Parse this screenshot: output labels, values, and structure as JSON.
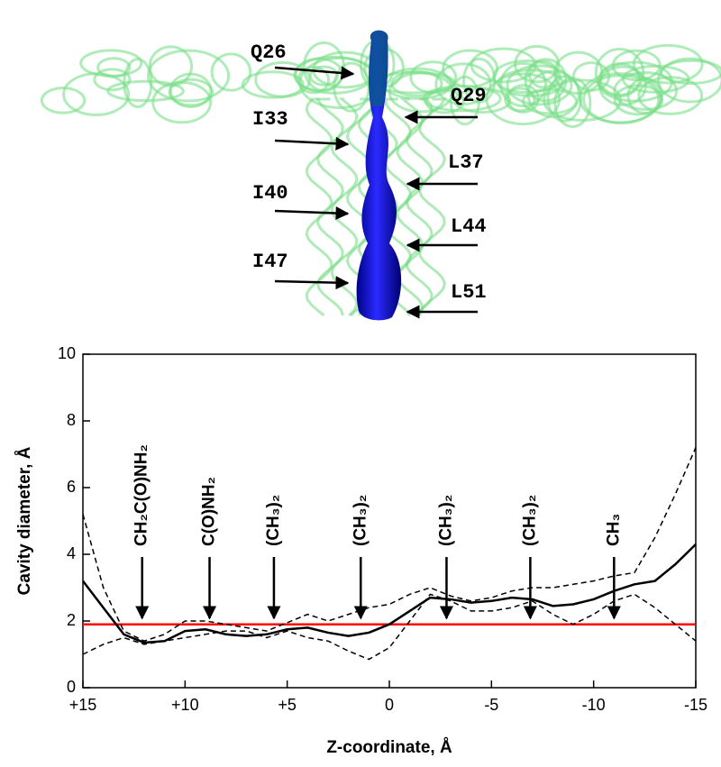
{
  "structure": {
    "labels": [
      "Q26",
      "Q29",
      "I33",
      "L37",
      "I40",
      "L44",
      "I47",
      "L51"
    ]
  },
  "chart_data": {
    "type": "line",
    "xlabel": "Z-coordinate, Å",
    "ylabel": "Cavity diameter, Å",
    "x": [
      15,
      14,
      13,
      12,
      11,
      10,
      9,
      8,
      7,
      6,
      5,
      4,
      3,
      2,
      1,
      0,
      -1,
      -2,
      -3,
      -4,
      -5,
      -6,
      -7,
      -8,
      -9,
      -10,
      -11,
      -12,
      -13,
      -14,
      -15
    ],
    "series": [
      {
        "color": "#000000",
        "dash": "solid",
        "values": [
          3.2,
          2.4,
          1.6,
          1.35,
          1.4,
          1.7,
          1.75,
          1.6,
          1.55,
          1.6,
          1.75,
          1.8,
          1.65,
          1.55,
          1.65,
          1.9,
          2.3,
          2.7,
          2.65,
          2.55,
          2.6,
          2.7,
          2.65,
          2.45,
          2.5,
          2.65,
          2.9,
          3.1,
          3.2,
          3.7,
          4.3
        ]
      },
      {
        "color": "#000000",
        "dash": "dashed",
        "values": [
          5.2,
          3.0,
          1.7,
          1.4,
          1.6,
          2.0,
          2.0,
          1.9,
          1.8,
          1.7,
          1.95,
          2.2,
          2.0,
          2.2,
          2.4,
          2.5,
          2.8,
          3.0,
          2.75,
          2.6,
          2.7,
          2.9,
          3.0,
          3.0,
          3.1,
          3.2,
          3.35,
          3.45,
          4.5,
          5.8,
          7.2
        ]
      },
      {
        "color": "#000000",
        "dash": "dashed",
        "values": [
          1.0,
          1.3,
          1.5,
          1.3,
          1.4,
          1.5,
          1.6,
          1.7,
          1.7,
          1.5,
          1.7,
          1.5,
          1.4,
          1.1,
          0.85,
          1.2,
          2.0,
          2.8,
          2.6,
          2.3,
          2.3,
          2.4,
          2.6,
          2.2,
          1.9,
          2.2,
          2.6,
          2.8,
          2.4,
          1.9,
          1.4
        ]
      }
    ],
    "hlines": [
      {
        "value": 1.9,
        "color": "#ff0000"
      }
    ],
    "annotations": [
      {
        "text": "CH₂C(O)NH₂",
        "x": 12.1
      },
      {
        "text": "C(O)NH₂",
        "x": 8.8
      },
      {
        "text": "(CH₃)₂",
        "x": 5.65
      },
      {
        "text": "(CH₃)₂",
        "x": 1.4
      },
      {
        "text": "(CH₃)₂",
        "x": -2.8
      },
      {
        "text": "(CH₃)₂",
        "x": -6.9
      },
      {
        "text": "CH₃",
        "x": -11.0
      }
    ],
    "xlim": [
      15,
      -15
    ],
    "ylim": [
      0,
      10
    ],
    "xticks": [
      {
        "value": 15,
        "label": "+15"
      },
      {
        "value": 10,
        "label": "+10"
      },
      {
        "value": 5,
        "label": "+5"
      },
      0,
      -5,
      -10,
      -15
    ],
    "yticks": [
      0,
      2,
      4,
      6,
      8,
      10
    ]
  }
}
